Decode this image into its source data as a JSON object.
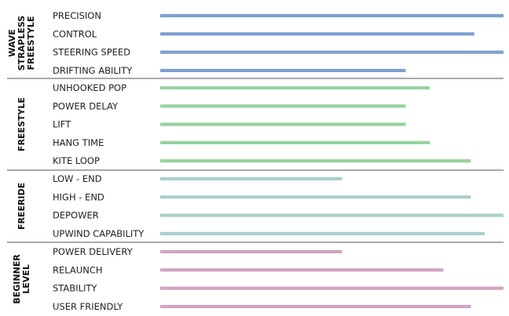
{
  "chart_data": {
    "type": "bar",
    "orientation": "horizontal",
    "xlim": [
      0,
      100
    ],
    "grid": false,
    "groups": [
      {
        "name_lines": [
          "WAVE",
          "STRAPLESS",
          "FREESTYLE"
        ],
        "color": "#7e9fcf",
        "categories": [
          "PRECISION",
          "CONTROL",
          "STEERING SPEED",
          "DRIFTING ABILITY"
        ],
        "values": [
          100,
          91.5,
          100,
          71.5
        ]
      },
      {
        "name_lines": [
          "FREESTYLE"
        ],
        "color": "#96d39e",
        "categories": [
          "UNHOOKED POP",
          "POWER DELAY",
          "LIFT",
          "HANG TIME",
          "KITE LOOP"
        ],
        "values": [
          78.5,
          71.5,
          71.5,
          78.5,
          90.5
        ]
      },
      {
        "name_lines": [
          "FREERIDE"
        ],
        "color": "#a8cfcb",
        "categories": [
          "LOW - END",
          "HIGH - END",
          "DEPOWER",
          "UPWIND CAPABILITY"
        ],
        "values": [
          53,
          90.5,
          100,
          94.5
        ]
      },
      {
        "name_lines": [
          "BEGINNER",
          "LEVEL"
        ],
        "color": "#cfa5c2",
        "categories": [
          "POWER DELIVERY",
          "RELAUNCH",
          "STABILITY",
          "USER FRIENDLY"
        ],
        "values": [
          53,
          82.5,
          100,
          90.5
        ]
      }
    ],
    "divider_color": "#555555"
  }
}
